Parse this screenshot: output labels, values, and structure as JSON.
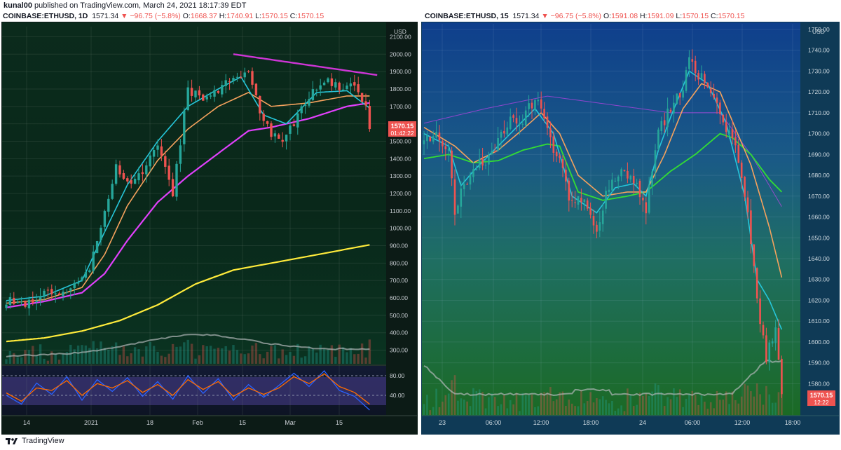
{
  "publisher": {
    "user": "kunal00",
    "text": "published on TradingView.com, March 24, 2021 18:17:39 EDT"
  },
  "footer": {
    "brand": "TradingView"
  },
  "colors": {
    "up": "#26a69a",
    "down": "#ef5350",
    "ema_fast": "#26c6da",
    "ema_mid": "#f5a25d",
    "ema_slow": "#e040fb",
    "ma200": "#ffeb3b",
    "trend": "#ce35d6",
    "lime": "#33dd33"
  },
  "left": {
    "header": {
      "symbol": "COINBASE:ETHUSD, 1D",
      "last": "1571.34",
      "change": "−96.75 (−5.8%)",
      "o_label": "O:",
      "o": "1668.37",
      "h_label": "H:",
      "h": "1740.91",
      "l_label": "L:",
      "l": "1570.15",
      "c_label": "C:",
      "c": "1570.15"
    },
    "price_label": "1570.15",
    "countdown": "01:42:22"
  },
  "right": {
    "header": {
      "symbol": "COINBASE:ETHUSD, 15",
      "last": "1571.34",
      "change": "−96.75 (−5.8%)",
      "o_label": "O:",
      "o": "1591.08",
      "h_label": "H:",
      "h": "1591.09",
      "l_label": "L:",
      "l": "1570.15",
      "c_label": "C:",
      "c": "1570.15"
    },
    "price_label": "1570.15",
    "countdown": "12:22"
  },
  "chart_data": [
    {
      "type": "candlestick",
      "title": "COINBASE:ETHUSD, 1D",
      "ylabel": "USD",
      "ylim": [
        250,
        2150
      ],
      "yticks": [
        2100,
        2000,
        1900,
        1800,
        1700,
        1600,
        1500,
        1400,
        1300,
        1200,
        1100,
        1000,
        900,
        800,
        700,
        600,
        500,
        400,
        300
      ],
      "xticks": [
        "14",
        "2021",
        "18",
        "Feb",
        "15",
        "Mar",
        "15"
      ],
      "close_anchors": [
        [
          0,
          590
        ],
        [
          5,
          560
        ],
        [
          9,
          630
        ],
        [
          14,
          600
        ],
        [
          18,
          670
        ],
        [
          22,
          760
        ],
        [
          26,
          1100
        ],
        [
          29,
          1350
        ],
        [
          32,
          1250
        ],
        [
          35,
          1300
        ],
        [
          40,
          1500
        ],
        [
          44,
          1200
        ],
        [
          48,
          1800
        ],
        [
          52,
          1750
        ],
        [
          56,
          1800
        ],
        [
          60,
          1850
        ],
        [
          64,
          1900
        ],
        [
          68,
          1600
        ],
        [
          72,
          1500
        ],
        [
          76,
          1600
        ],
        [
          80,
          1750
        ],
        [
          84,
          1850
        ],
        [
          88,
          1800
        ],
        [
          92,
          1810
        ],
        [
          95,
          1700
        ],
        [
          96,
          1570
        ]
      ],
      "trendline": [
        [
          60,
          2000
        ],
        [
          98,
          1880
        ]
      ],
      "ema_fast": [
        [
          0,
          585
        ],
        [
          10,
          610
        ],
        [
          20,
          700
        ],
        [
          26,
          980
        ],
        [
          32,
          1250
        ],
        [
          40,
          1500
        ],
        [
          48,
          1700
        ],
        [
          56,
          1800
        ],
        [
          62,
          1870
        ],
        [
          68,
          1650
        ],
        [
          74,
          1600
        ],
        [
          82,
          1780
        ],
        [
          90,
          1790
        ],
        [
          96,
          1690
        ]
      ],
      "ema_mid": [
        [
          0,
          570
        ],
        [
          10,
          590
        ],
        [
          20,
          660
        ],
        [
          26,
          850
        ],
        [
          32,
          1130
        ],
        [
          40,
          1390
        ],
        [
          48,
          1570
        ],
        [
          56,
          1700
        ],
        [
          64,
          1780
        ],
        [
          70,
          1700
        ],
        [
          80,
          1720
        ],
        [
          90,
          1760
        ],
        [
          96,
          1760
        ]
      ],
      "ema_slow": [
        [
          0,
          545
        ],
        [
          10,
          580
        ],
        [
          20,
          630
        ],
        [
          26,
          740
        ],
        [
          32,
          930
        ],
        [
          40,
          1150
        ],
        [
          48,
          1300
        ],
        [
          56,
          1430
        ],
        [
          64,
          1560
        ],
        [
          70,
          1580
        ],
        [
          80,
          1630
        ],
        [
          90,
          1700
        ],
        [
          96,
          1720
        ]
      ],
      "ma200": [
        [
          0,
          350
        ],
        [
          10,
          370
        ],
        [
          20,
          410
        ],
        [
          30,
          470
        ],
        [
          40,
          560
        ],
        [
          50,
          680
        ],
        [
          60,
          760
        ],
        [
          70,
          800
        ],
        [
          80,
          840
        ],
        [
          96,
          905
        ]
      ],
      "stoch_rsi": {
        "levels": [
          80,
          40
        ],
        "k": [
          [
            0,
            40
          ],
          [
            4,
            22
          ],
          [
            8,
            65
          ],
          [
            12,
            42
          ],
          [
            16,
            78
          ],
          [
            20,
            30
          ],
          [
            24,
            72
          ],
          [
            28,
            48
          ],
          [
            32,
            76
          ],
          [
            36,
            38
          ],
          [
            40,
            68
          ],
          [
            44,
            32
          ],
          [
            48,
            80
          ],
          [
            52,
            44
          ],
          [
            56,
            74
          ],
          [
            60,
            30
          ],
          [
            64,
            62
          ],
          [
            68,
            36
          ],
          [
            72,
            60
          ],
          [
            76,
            85
          ],
          [
            80,
            58
          ],
          [
            84,
            90
          ],
          [
            88,
            50
          ],
          [
            92,
            38
          ],
          [
            96,
            10
          ]
        ],
        "d": [
          [
            0,
            45
          ],
          [
            4,
            28
          ],
          [
            8,
            55
          ],
          [
            12,
            50
          ],
          [
            16,
            70
          ],
          [
            20,
            40
          ],
          [
            24,
            64
          ],
          [
            28,
            55
          ],
          [
            32,
            70
          ],
          [
            36,
            46
          ],
          [
            40,
            62
          ],
          [
            44,
            40
          ],
          [
            48,
            72
          ],
          [
            52,
            52
          ],
          [
            56,
            68
          ],
          [
            60,
            38
          ],
          [
            64,
            55
          ],
          [
            68,
            42
          ],
          [
            72,
            55
          ],
          [
            76,
            78
          ],
          [
            80,
            64
          ],
          [
            84,
            84
          ],
          [
            88,
            58
          ],
          [
            92,
            46
          ],
          [
            96,
            22
          ]
        ]
      }
    },
    {
      "type": "candlestick",
      "title": "COINBASE:ETHUSD, 15",
      "ylabel": "USD",
      "ylim": [
        1565,
        1752
      ],
      "yticks": [
        1750,
        1740,
        1730,
        1720,
        1710,
        1700,
        1690,
        1680,
        1670,
        1660,
        1650,
        1640,
        1630,
        1620,
        1610,
        1600,
        1590,
        1580
      ],
      "xticks": [
        "23",
        "06:00",
        "12:00",
        "18:00",
        "24",
        "06:00",
        "12:00",
        "18:00"
      ],
      "close_anchors": [
        [
          0,
          1700
        ],
        [
          4,
          1698
        ],
        [
          8,
          1692
        ],
        [
          10,
          1660
        ],
        [
          12,
          1672
        ],
        [
          16,
          1684
        ],
        [
          20,
          1688
        ],
        [
          24,
          1696
        ],
        [
          28,
          1708
        ],
        [
          32,
          1706
        ],
        [
          36,
          1718
        ],
        [
          40,
          1700
        ],
        [
          44,
          1688
        ],
        [
          48,
          1665
        ],
        [
          52,
          1670
        ],
        [
          56,
          1655
        ],
        [
          60,
          1676
        ],
        [
          64,
          1680
        ],
        [
          68,
          1677
        ],
        [
          72,
          1664
        ],
        [
          76,
          1700
        ],
        [
          80,
          1712
        ],
        [
          84,
          1720
        ],
        [
          86,
          1735
        ],
        [
          90,
          1727
        ],
        [
          94,
          1720
        ],
        [
          98,
          1702
        ],
        [
          102,
          1688
        ],
        [
          105,
          1660
        ],
        [
          108,
          1620
        ],
        [
          111,
          1590
        ],
        [
          114,
          1610
        ],
        [
          116,
          1575
        ]
      ],
      "ema_fast": [
        [
          0,
          1700
        ],
        [
          8,
          1694
        ],
        [
          12,
          1675
        ],
        [
          16,
          1682
        ],
        [
          24,
          1694
        ],
        [
          32,
          1706
        ],
        [
          36,
          1712
        ],
        [
          42,
          1700
        ],
        [
          48,
          1670
        ],
        [
          56,
          1662
        ],
        [
          62,
          1674
        ],
        [
          68,
          1676
        ],
        [
          72,
          1670
        ],
        [
          76,
          1692
        ],
        [
          80,
          1708
        ],
        [
          86,
          1730
        ],
        [
          92,
          1724
        ],
        [
          98,
          1705
        ],
        [
          104,
          1670
        ],
        [
          108,
          1630
        ],
        [
          112,
          1620
        ],
        [
          116,
          1606
        ]
      ],
      "ema_mid": [
        [
          0,
          1703
        ],
        [
          10,
          1694
        ],
        [
          16,
          1686
        ],
        [
          24,
          1692
        ],
        [
          32,
          1702
        ],
        [
          38,
          1710
        ],
        [
          44,
          1700
        ],
        [
          50,
          1680
        ],
        [
          58,
          1670
        ],
        [
          66,
          1672
        ],
        [
          72,
          1672
        ],
        [
          78,
          1690
        ],
        [
          84,
          1712
        ],
        [
          90,
          1724
        ],
        [
          96,
          1720
        ],
        [
          100,
          1706
        ],
        [
          106,
          1685
        ],
        [
          112,
          1655
        ],
        [
          116,
          1631
        ]
      ],
      "ma_green": [
        [
          0,
          1688
        ],
        [
          8,
          1690
        ],
        [
          16,
          1686
        ],
        [
          24,
          1687
        ],
        [
          32,
          1692
        ],
        [
          40,
          1695
        ],
        [
          44,
          1694
        ],
        [
          50,
          1672
        ],
        [
          58,
          1668
        ],
        [
          66,
          1670
        ],
        [
          72,
          1672
        ],
        [
          80,
          1682
        ],
        [
          88,
          1690
        ],
        [
          96,
          1700
        ],
        [
          100,
          1698
        ],
        [
          106,
          1690
        ],
        [
          112,
          1678
        ],
        [
          116,
          1672
        ]
      ],
      "ma_purple": [
        [
          0,
          1705
        ],
        [
          20,
          1712
        ],
        [
          40,
          1718
        ],
        [
          60,
          1714
        ],
        [
          80,
          1710
        ],
        [
          96,
          1710
        ],
        [
          106,
          1690
        ],
        [
          116,
          1665
        ]
      ]
    }
  ]
}
